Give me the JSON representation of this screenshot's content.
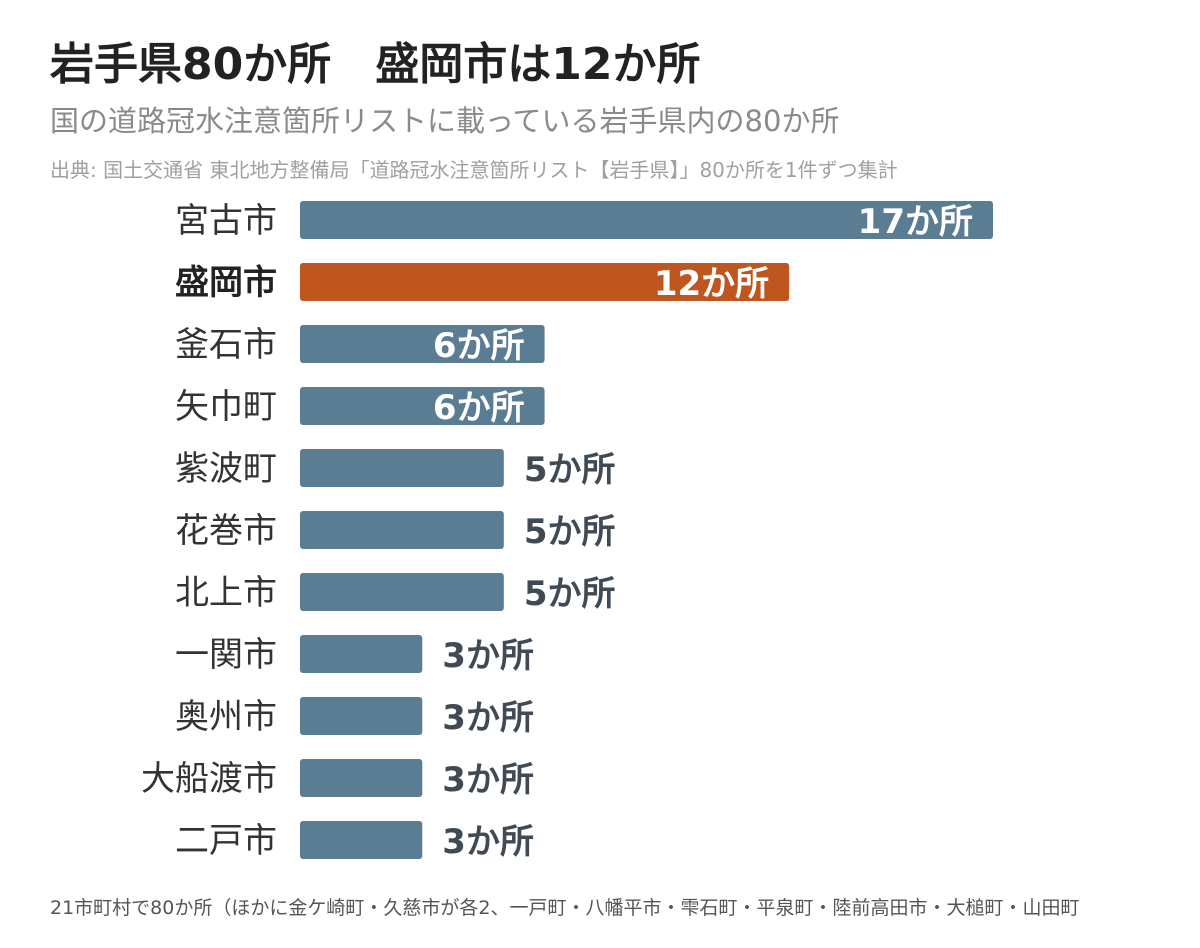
{
  "title": "岩手県80か所　盛岡市は12か所",
  "subtitle": "国の道路冠水注意箇所リストに載っている岩手県内の80か所",
  "source": "出典: 国土交通省 東北地方整備局「道路冠水注意箇所リスト【岩手県】」80か所を1件ずつ集計",
  "footnote": "21市町村で80か所（ほかに金ケ崎町・久慈市が各2、一戸町・八幡平市・雫石町・平泉町・陸前高田市・大槌町・山田町",
  "colors": {
    "bar": "#5a7d93",
    "highlight": "#c0561f",
    "label_inside": "#ffffff",
    "label_outside": "#3f4a55"
  },
  "chart_data": {
    "type": "bar",
    "orientation": "horizontal",
    "categories": [
      "宮古市",
      "盛岡市",
      "釜石市",
      "矢巾町",
      "紫波町",
      "花巻市",
      "北上市",
      "一関市",
      "奥州市",
      "大船渡市",
      "二戸市"
    ],
    "values": [
      17,
      12,
      6,
      6,
      5,
      5,
      5,
      3,
      3,
      3,
      3
    ],
    "value_labels": [
      "17か所",
      "12か所",
      "6か所",
      "6か所",
      "5か所",
      "5か所",
      "5か所",
      "3か所",
      "3か所",
      "3か所",
      "3か所"
    ],
    "highlight": "盛岡市",
    "xlim": [
      0,
      17
    ],
    "grid": false
  }
}
